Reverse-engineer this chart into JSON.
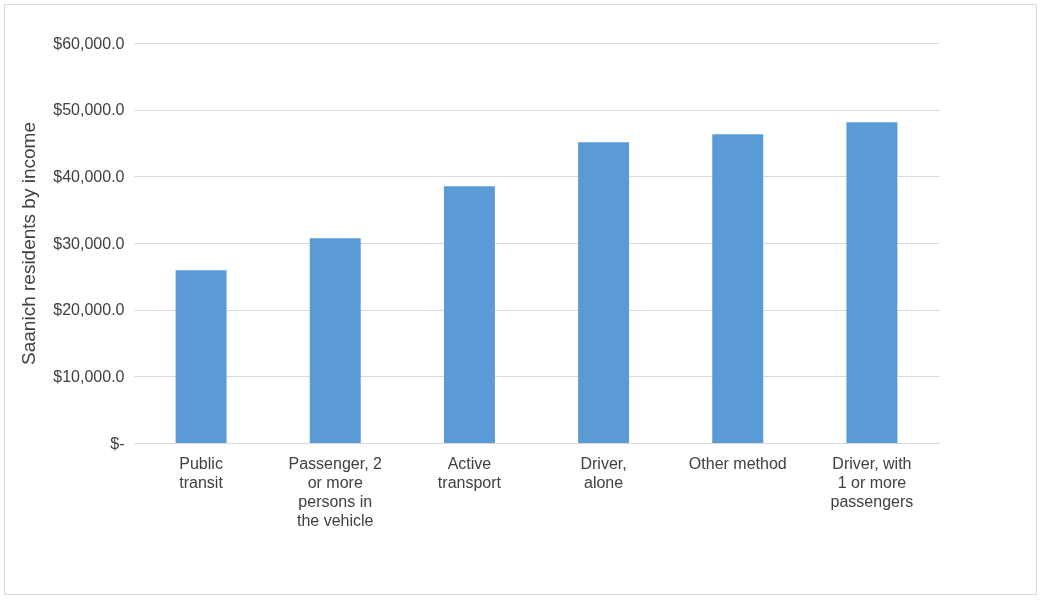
{
  "chart_data": {
    "type": "bar",
    "ylabel": "Saanich residents by income",
    "categories": [
      "Public transit",
      "Passenger, 2 or more persons in the vehicle",
      "Active transport",
      "Driver, alone",
      "Other method",
      "Driver, with 1 or more passengers"
    ],
    "values": [
      25900,
      30700,
      38500,
      45100,
      46300,
      48100
    ],
    "color": "#5b9bd5",
    "ylim": [
      0,
      60000
    ],
    "yticks": [
      {
        "value": 0,
        "label": "$-"
      },
      {
        "value": 10000,
        "label": "$10,000.0"
      },
      {
        "value": 20000,
        "label": "$20,000.0"
      },
      {
        "value": 30000,
        "label": "$30,000.0"
      },
      {
        "value": 40000,
        "label": "$40,000.0"
      },
      {
        "value": 50000,
        "label": "$50,000.0"
      },
      {
        "value": 60000,
        "label": "$60,000.0"
      }
    ],
    "grid": "y"
  }
}
